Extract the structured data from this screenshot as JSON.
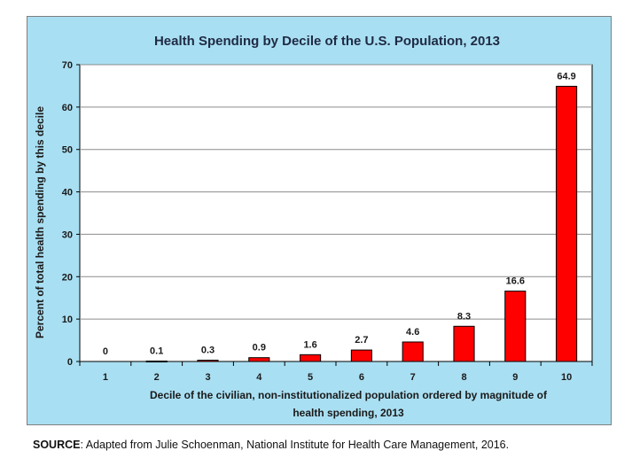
{
  "chart_data": {
    "type": "bar",
    "title": "Health Spending by Decile of the U.S. Population, 2013",
    "xlabel_lines": [
      "Decile of the civilian, non-institutionalized population ordered by magnitude of",
      "health spending, 2013"
    ],
    "ylabel": "Percent of total health spending by this decile",
    "categories": [
      "1",
      "2",
      "3",
      "4",
      "5",
      "6",
      "7",
      "8",
      "9",
      "10"
    ],
    "values": [
      0,
      0.1,
      0.3,
      0.9,
      1.6,
      2.7,
      4.6,
      8.3,
      16.6,
      64.9
    ],
    "data_labels": [
      "0",
      "0.1",
      "0.3",
      "0.9",
      "1.6",
      "2.7",
      "4.6",
      "8.3",
      "16.6",
      "64.9"
    ],
    "ylim": [
      0,
      70
    ],
    "yticks": [
      0,
      10,
      20,
      30,
      40,
      50,
      60,
      70
    ],
    "grid": true,
    "bar_color": "#ff0000",
    "background_color": "#a9dff2",
    "plot_background_color": "#ffffff"
  },
  "source": {
    "label": "SOURCE",
    "text": ": Adapted from Julie Schoenman, National Institute for Health Care Management, 2016."
  }
}
